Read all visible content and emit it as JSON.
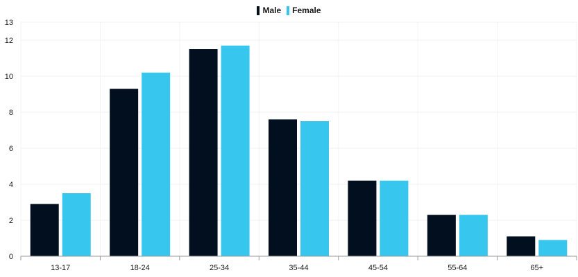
{
  "chart_data": {
    "type": "bar",
    "categories": [
      "13-17",
      "18-24",
      "25-34",
      "35-44",
      "45-54",
      "55-64",
      "65+"
    ],
    "series": [
      {
        "name": "Male",
        "color": "#020f1f",
        "values": [
          2.9,
          9.3,
          11.5,
          7.6,
          4.2,
          2.3,
          1.1
        ]
      },
      {
        "name": "Female",
        "color": "#36c6ee",
        "values": [
          3.5,
          10.2,
          11.7,
          7.5,
          4.2,
          2.3,
          0.9
        ]
      }
    ],
    "title": "",
    "xlabel": "",
    "ylabel": "",
    "ylim": [
      0,
      13
    ],
    "yticks": [
      0,
      2,
      4,
      6,
      8,
      10,
      12,
      13
    ],
    "grid": true,
    "legend_position": "top-center"
  }
}
